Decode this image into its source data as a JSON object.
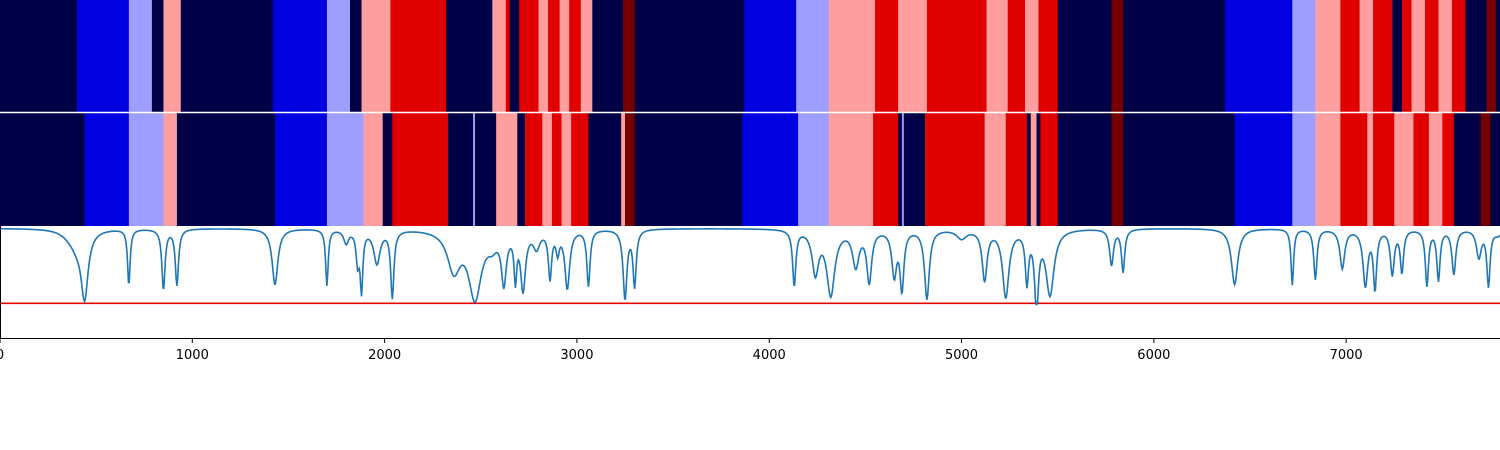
{
  "chart_data": [
    {
      "type": "heatmap",
      "xlim": [
        0,
        7800
      ],
      "palette": {
        "d": "#000046",
        "b": "#0000e0",
        "l": "#9e9eff",
        "p": "#ff9e9e",
        "r": "#e00000",
        "m": "#760000"
      },
      "segments": [
        [
          0,
          400,
          "d"
        ],
        [
          400,
          670,
          "b"
        ],
        [
          670,
          790,
          "l"
        ],
        [
          790,
          850,
          "d"
        ],
        [
          850,
          940,
          "p"
        ],
        [
          940,
          1420,
          "d"
        ],
        [
          1420,
          1700,
          "b"
        ],
        [
          1700,
          1820,
          "l"
        ],
        [
          1820,
          1880,
          "d"
        ],
        [
          1880,
          2030,
          "p"
        ],
        [
          2030,
          2320,
          "r"
        ],
        [
          2320,
          2560,
          "d"
        ],
        [
          2560,
          2630,
          "p"
        ],
        [
          2630,
          2650,
          "r"
        ],
        [
          2650,
          2700,
          "d"
        ],
        [
          2700,
          2800,
          "r"
        ],
        [
          2800,
          2850,
          "p"
        ],
        [
          2850,
          2910,
          "r"
        ],
        [
          2910,
          2960,
          "p"
        ],
        [
          2960,
          3020,
          "r"
        ],
        [
          3020,
          3080,
          "p"
        ],
        [
          3080,
          3240,
          "d"
        ],
        [
          3240,
          3300,
          "m"
        ],
        [
          3300,
          3870,
          "d"
        ],
        [
          3870,
          4140,
          "b"
        ],
        [
          4140,
          4310,
          "l"
        ],
        [
          4310,
          4550,
          "p"
        ],
        [
          4550,
          4670,
          "r"
        ],
        [
          4670,
          4820,
          "p"
        ],
        [
          4820,
          5130,
          "r"
        ],
        [
          5130,
          5240,
          "p"
        ],
        [
          5240,
          5330,
          "r"
        ],
        [
          5330,
          5400,
          "p"
        ],
        [
          5400,
          5500,
          "r"
        ],
        [
          5500,
          5780,
          "d"
        ],
        [
          5780,
          5840,
          "m"
        ],
        [
          5840,
          6370,
          "d"
        ],
        [
          6370,
          6720,
          "b"
        ],
        [
          6720,
          6840,
          "l"
        ],
        [
          6840,
          6970,
          "p"
        ],
        [
          6970,
          7070,
          "r"
        ],
        [
          7070,
          7140,
          "p"
        ],
        [
          7140,
          7240,
          "r"
        ],
        [
          7240,
          7290,
          "d"
        ],
        [
          7290,
          7340,
          "r"
        ],
        [
          7340,
          7410,
          "p"
        ],
        [
          7410,
          7480,
          "r"
        ],
        [
          7480,
          7550,
          "p"
        ],
        [
          7550,
          7620,
          "r"
        ],
        [
          7620,
          7730,
          "d"
        ],
        [
          7730,
          7780,
          "m"
        ],
        [
          7780,
          7800,
          "d"
        ]
      ]
    },
    {
      "type": "heatmap",
      "xlim": [
        0,
        7800
      ],
      "segments": [
        [
          0,
          440,
          "d"
        ],
        [
          440,
          670,
          "b"
        ],
        [
          670,
          850,
          "l"
        ],
        [
          850,
          920,
          "p"
        ],
        [
          920,
          1430,
          "d"
        ],
        [
          1430,
          1700,
          "b"
        ],
        [
          1700,
          1890,
          "l"
        ],
        [
          1890,
          1990,
          "p"
        ],
        [
          1990,
          2040,
          "d"
        ],
        [
          2040,
          2330,
          "r"
        ],
        [
          2330,
          2460,
          "d"
        ],
        [
          2460,
          2470,
          "l"
        ],
        [
          2470,
          2580,
          "d"
        ],
        [
          2580,
          2690,
          "p"
        ],
        [
          2690,
          2730,
          "d"
        ],
        [
          2730,
          2820,
          "r"
        ],
        [
          2820,
          2870,
          "p"
        ],
        [
          2870,
          2920,
          "r"
        ],
        [
          2920,
          2970,
          "p"
        ],
        [
          2970,
          3060,
          "r"
        ],
        [
          3060,
          3080,
          "d"
        ],
        [
          3080,
          3230,
          "d"
        ],
        [
          3230,
          3250,
          "p"
        ],
        [
          3250,
          3300,
          "m"
        ],
        [
          3300,
          3860,
          "d"
        ],
        [
          3860,
          4150,
          "b"
        ],
        [
          4150,
          4310,
          "l"
        ],
        [
          4310,
          4540,
          "p"
        ],
        [
          4540,
          4670,
          "r"
        ],
        [
          4670,
          4690,
          "d"
        ],
        [
          4690,
          4700,
          "l"
        ],
        [
          4700,
          4810,
          "d"
        ],
        [
          4810,
          5120,
          "r"
        ],
        [
          5120,
          5230,
          "p"
        ],
        [
          5230,
          5340,
          "r"
        ],
        [
          5340,
          5360,
          "d"
        ],
        [
          5360,
          5390,
          "p"
        ],
        [
          5390,
          5410,
          "d"
        ],
        [
          5410,
          5500,
          "r"
        ],
        [
          5500,
          5780,
          "d"
        ],
        [
          5780,
          5840,
          "m"
        ],
        [
          5840,
          6420,
          "d"
        ],
        [
          6420,
          6720,
          "b"
        ],
        [
          6720,
          6840,
          "l"
        ],
        [
          6840,
          6970,
          "p"
        ],
        [
          6970,
          7110,
          "r"
        ],
        [
          7110,
          7140,
          "p"
        ],
        [
          7140,
          7250,
          "r"
        ],
        [
          7250,
          7350,
          "p"
        ],
        [
          7350,
          7430,
          "r"
        ],
        [
          7430,
          7500,
          "p"
        ],
        [
          7500,
          7560,
          "r"
        ],
        [
          7560,
          7700,
          "d"
        ],
        [
          7700,
          7750,
          "m"
        ],
        [
          7750,
          7800,
          "d"
        ]
      ]
    },
    {
      "type": "line",
      "xlim": [
        0,
        7800
      ],
      "ylim": [
        0,
        1
      ],
      "x_ticks": [
        0,
        1000,
        2000,
        3000,
        4000,
        5000,
        6000,
        7000
      ],
      "x_tick_labels": [
        "0",
        "1000",
        "2000",
        "3000",
        "4000",
        "5000",
        "6000",
        "7000"
      ],
      "colors": {
        "line": "#1f77b4",
        "threshold": "#e00000"
      },
      "threshold": 0.31,
      "baseline": 0.98,
      "dips": [
        [
          360,
          0.04,
          50
        ],
        [
          400,
          0.12,
          40
        ],
        [
          440,
          0.58,
          22
        ],
        [
          670,
          0.5,
          8
        ],
        [
          850,
          0.54,
          10
        ],
        [
          920,
          0.5,
          10
        ],
        [
          1430,
          0.5,
          18
        ],
        [
          1700,
          0.5,
          8
        ],
        [
          1800,
          0.12,
          15
        ],
        [
          1860,
          0.28,
          10
        ],
        [
          1880,
          0.52,
          8
        ],
        [
          1960,
          0.3,
          20
        ],
        [
          2040,
          0.6,
          10
        ],
        [
          2360,
          0.35,
          40
        ],
        [
          2470,
          0.6,
          40
        ],
        [
          2560,
          0.1,
          30
        ],
        [
          2620,
          0.45,
          15
        ],
        [
          2680,
          0.4,
          8
        ],
        [
          2720,
          0.52,
          15
        ],
        [
          2790,
          0.15,
          20
        ],
        [
          2860,
          0.42,
          10
        ],
        [
          2900,
          0.18,
          10
        ],
        [
          2950,
          0.52,
          15
        ],
        [
          3060,
          0.5,
          10
        ],
        [
          3250,
          0.62,
          12
        ],
        [
          3300,
          0.5,
          10
        ],
        [
          4130,
          0.5,
          10
        ],
        [
          4240,
          0.38,
          20
        ],
        [
          4320,
          0.58,
          25
        ],
        [
          4450,
          0.32,
          20
        ],
        [
          4520,
          0.46,
          15
        ],
        [
          4650,
          0.4,
          15
        ],
        [
          4690,
          0.52,
          12
        ],
        [
          4820,
          0.62,
          15
        ],
        [
          5000,
          0.08,
          30
        ],
        [
          5120,
          0.45,
          15
        ],
        [
          5230,
          0.6,
          20
        ],
        [
          5340,
          0.45,
          10
        ],
        [
          5390,
          0.68,
          12
        ],
        [
          5460,
          0.58,
          25
        ],
        [
          5780,
          0.32,
          12
        ],
        [
          5840,
          0.38,
          10
        ],
        [
          6420,
          0.5,
          20
        ],
        [
          6720,
          0.5,
          8
        ],
        [
          6840,
          0.45,
          10
        ],
        [
          6980,
          0.35,
          15
        ],
        [
          7100,
          0.5,
          15
        ],
        [
          7150,
          0.52,
          10
        ],
        [
          7240,
          0.4,
          12
        ],
        [
          7290,
          0.38,
          10
        ],
        [
          7420,
          0.5,
          10
        ],
        [
          7480,
          0.45,
          10
        ],
        [
          7560,
          0.4,
          12
        ],
        [
          7690,
          0.25,
          15
        ],
        [
          7740,
          0.5,
          10
        ],
        [
          7790,
          0.05,
          20
        ]
      ]
    }
  ]
}
